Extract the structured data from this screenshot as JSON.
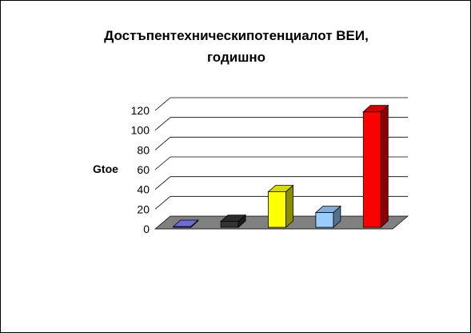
{
  "chart_data": {
    "type": "bar",
    "title_line1": "Достъпентехническипотенциалот ВЕИ,",
    "title_line2": "годишно",
    "ylabel": "Gtoe",
    "ylim": [
      0,
      120
    ],
    "yticks": [
      "0",
      "20",
      "40",
      "60",
      "80",
      "100",
      "120"
    ],
    "grid": true,
    "categories": [
      "",
      "",
      "",
      "",
      ""
    ],
    "values": [
      0.3,
      6,
      36,
      15,
      117
    ],
    "colors": [
      "#8080ff",
      "#333333",
      "#ffff00",
      "#99ccff",
      "#ff0000"
    ],
    "floor_color": "#808080"
  }
}
